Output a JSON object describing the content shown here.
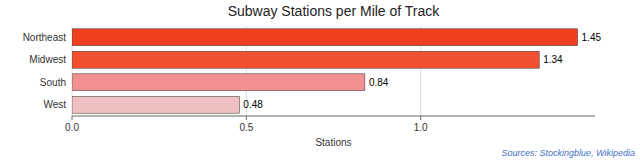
{
  "chart_data": {
    "type": "bar",
    "orientation": "horizontal",
    "title": "Subway Stations per Mile of Track",
    "categories": [
      "Northeast",
      "Midwest",
      "South",
      "West"
    ],
    "values": [
      1.45,
      1.34,
      0.84,
      0.48
    ],
    "colors": [
      "#f04020",
      "#f05030",
      "#f09090",
      "#f0c0c0"
    ],
    "xlabel": "Stations",
    "xlim": [
      0,
      1.5
    ],
    "xticks": [
      {
        "value": 0,
        "label": "0.0"
      },
      0.5,
      {
        "value": 1,
        "label": "1.0"
      }
    ],
    "grid": true,
    "data_labels": true,
    "source": "Sources: Stockingblue, Wikipedia"
  }
}
